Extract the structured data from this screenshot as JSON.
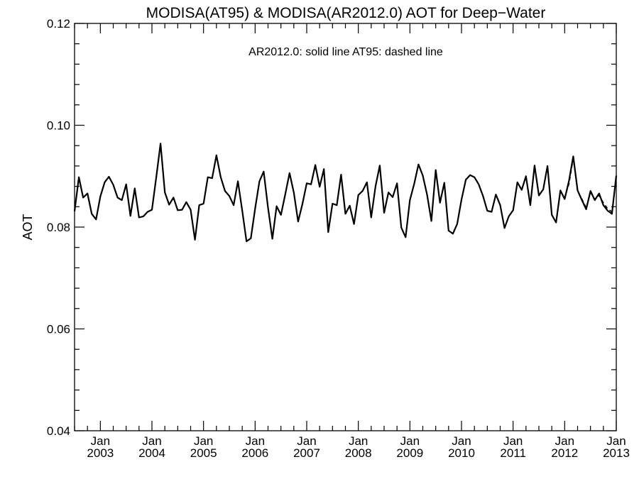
{
  "chart_data": {
    "type": "line",
    "title": "MODISA(AT95) & MODISA(AR2012.0)  AOT for Deep−Water",
    "annotation": "AR2012.0: solid line   AT95: dashed line",
    "xlabel": "",
    "ylabel": "AOT",
    "xlim": [
      "2002-07",
      "2013-01"
    ],
    "ylim": [
      0.04,
      0.12
    ],
    "grid": false,
    "y_ticks": [
      "0.04",
      "0.06",
      "0.08",
      "0.10",
      "0.12"
    ],
    "x_ticks": [
      {
        "month": "Jan",
        "year": "2003",
        "date": "2003-01"
      },
      {
        "month": "Jan",
        "year": "2004",
        "date": "2004-01"
      },
      {
        "month": "Jan",
        "year": "2005",
        "date": "2005-01"
      },
      {
        "month": "Jan",
        "year": "2006",
        "date": "2006-01"
      },
      {
        "month": "Jan",
        "year": "2007",
        "date": "2007-01"
      },
      {
        "month": "Jan",
        "year": "2008",
        "date": "2008-01"
      },
      {
        "month": "Jan",
        "year": "2009",
        "date": "2009-01"
      },
      {
        "month": "Jan",
        "year": "2010",
        "date": "2010-01"
      },
      {
        "month": "Jan",
        "year": "2011",
        "date": "2011-01"
      },
      {
        "month": "Jan",
        "year": "2012",
        "date": "2012-01"
      },
      {
        "month": "Jan",
        "year": "2013",
        "date": "2013-01"
      }
    ],
    "series": [
      {
        "style": "solid",
        "color": "#000000",
        "points": [
          [
            "2002-07",
            0.0831
          ],
          [
            "2002-08",
            0.0898
          ],
          [
            "2002-09",
            0.0858
          ],
          [
            "2002-10",
            0.0866
          ],
          [
            "2002-11",
            0.0826
          ],
          [
            "2002-12",
            0.0815
          ],
          [
            "2003-01",
            0.086
          ],
          [
            "2003-02",
            0.0888
          ],
          [
            "2003-03",
            0.0899
          ],
          [
            "2003-04",
            0.0883
          ],
          [
            "2003-05",
            0.0858
          ],
          [
            "2003-06",
            0.0853
          ],
          [
            "2003-07",
            0.0884
          ],
          [
            "2003-08",
            0.0822
          ],
          [
            "2003-09",
            0.0876
          ],
          [
            "2003-10",
            0.0819
          ],
          [
            "2003-11",
            0.0821
          ],
          [
            "2003-12",
            0.083
          ],
          [
            "2004-01",
            0.0834
          ],
          [
            "2004-02",
            0.0898
          ],
          [
            "2004-03",
            0.0964
          ],
          [
            "2004-04",
            0.0868
          ],
          [
            "2004-05",
            0.0844
          ],
          [
            "2004-06",
            0.0858
          ],
          [
            "2004-07",
            0.0833
          ],
          [
            "2004-08",
            0.0834
          ],
          [
            "2004-09",
            0.0849
          ],
          [
            "2004-10",
            0.0834
          ],
          [
            "2004-11",
            0.0775
          ],
          [
            "2004-12",
            0.0843
          ],
          [
            "2005-01",
            0.0846
          ],
          [
            "2005-02",
            0.0898
          ],
          [
            "2005-03",
            0.0896
          ],
          [
            "2005-04",
            0.0941
          ],
          [
            "2005-05",
            0.0898
          ],
          [
            "2005-06",
            0.0871
          ],
          [
            "2005-07",
            0.0861
          ],
          [
            "2005-08",
            0.0843
          ],
          [
            "2005-09",
            0.089
          ],
          [
            "2005-10",
            0.0832
          ],
          [
            "2005-11",
            0.0772
          ],
          [
            "2005-12",
            0.0778
          ],
          [
            "2006-01",
            0.0836
          ],
          [
            "2006-02",
            0.089
          ],
          [
            "2006-03",
            0.0909
          ],
          [
            "2006-04",
            0.0838
          ],
          [
            "2006-05",
            0.0777
          ],
          [
            "2006-06",
            0.0841
          ],
          [
            "2006-07",
            0.0824
          ],
          [
            "2006-08",
            0.0864
          ],
          [
            "2006-09",
            0.0906
          ],
          [
            "2006-10",
            0.0868
          ],
          [
            "2006-11",
            0.0811
          ],
          [
            "2006-12",
            0.0845
          ],
          [
            "2007-01",
            0.0886
          ],
          [
            "2007-02",
            0.0884
          ],
          [
            "2007-03",
            0.0922
          ],
          [
            "2007-04",
            0.0879
          ],
          [
            "2007-05",
            0.0914
          ],
          [
            "2007-06",
            0.079
          ],
          [
            "2007-07",
            0.0846
          ],
          [
            "2007-08",
            0.0843
          ],
          [
            "2007-09",
            0.0903
          ],
          [
            "2007-10",
            0.0826
          ],
          [
            "2007-11",
            0.0842
          ],
          [
            "2007-12",
            0.0806
          ],
          [
            "2008-01",
            0.0863
          ],
          [
            "2008-02",
            0.0871
          ],
          [
            "2008-03",
            0.0888
          ],
          [
            "2008-04",
            0.0819
          ],
          [
            "2008-05",
            0.088
          ],
          [
            "2008-06",
            0.0921
          ],
          [
            "2008-07",
            0.0828
          ],
          [
            "2008-08",
            0.0868
          ],
          [
            "2008-09",
            0.0859
          ],
          [
            "2008-10",
            0.0886
          ],
          [
            "2008-11",
            0.0799
          ],
          [
            "2008-12",
            0.078
          ],
          [
            "2009-01",
            0.0853
          ],
          [
            "2009-02",
            0.0885
          ],
          [
            "2009-03",
            0.0923
          ],
          [
            "2009-04",
            0.0901
          ],
          [
            "2009-05",
            0.0863
          ],
          [
            "2009-06",
            0.0812
          ],
          [
            "2009-07",
            0.0912
          ],
          [
            "2009-08",
            0.0848
          ],
          [
            "2009-09",
            0.0887
          ],
          [
            "2009-10",
            0.0793
          ],
          [
            "2009-11",
            0.0787
          ],
          [
            "2009-12",
            0.0806
          ],
          [
            "2010-01",
            0.0854
          ],
          [
            "2010-02",
            0.0893
          ],
          [
            "2010-03",
            0.0902
          ],
          [
            "2010-04",
            0.0898
          ],
          [
            "2010-05",
            0.0884
          ],
          [
            "2010-06",
            0.0861
          ],
          [
            "2010-07",
            0.0832
          ],
          [
            "2010-08",
            0.083
          ],
          [
            "2010-09",
            0.0864
          ],
          [
            "2010-10",
            0.0843
          ],
          [
            "2010-11",
            0.0798
          ],
          [
            "2010-12",
            0.0821
          ],
          [
            "2011-01",
            0.0833
          ],
          [
            "2011-02",
            0.0888
          ],
          [
            "2011-03",
            0.0873
          ],
          [
            "2011-04",
            0.09
          ],
          [
            "2011-05",
            0.0843
          ],
          [
            "2011-06",
            0.0921
          ],
          [
            "2011-07",
            0.0862
          ],
          [
            "2011-08",
            0.0874
          ],
          [
            "2011-09",
            0.092
          ],
          [
            "2011-10",
            0.0824
          ],
          [
            "2011-11",
            0.0809
          ],
          [
            "2011-12",
            0.0872
          ],
          [
            "2012-01",
            0.0855
          ],
          [
            "2012-02",
            0.0891
          ],
          [
            "2012-03",
            0.0939
          ],
          [
            "2012-04",
            0.0872
          ],
          [
            "2012-05",
            0.0853
          ],
          [
            "2012-06",
            0.0835
          ],
          [
            "2012-07",
            0.0871
          ],
          [
            "2012-08",
            0.0853
          ],
          [
            "2012-09",
            0.0866
          ],
          [
            "2012-10",
            0.0843
          ],
          [
            "2012-11",
            0.0832
          ],
          [
            "2012-12",
            0.0826
          ],
          [
            "2013-01",
            0.0901
          ]
        ]
      },
      {
        "style": "dashed",
        "color": "#000000",
        "points": [
          [
            "2011-12",
            0.087
          ],
          [
            "2012-01",
            0.0858
          ],
          [
            "2012-02",
            0.0885
          ],
          [
            "2012-03",
            0.0935
          ],
          [
            "2012-04",
            0.087
          ],
          [
            "2012-05",
            0.0855
          ],
          [
            "2012-06",
            0.0838
          ],
          [
            "2012-07",
            0.0868
          ],
          [
            "2012-08",
            0.0855
          ],
          [
            "2012-09",
            0.0862
          ],
          [
            "2012-10",
            0.0848
          ],
          [
            "2012-11",
            0.0836
          ],
          [
            "2012-12",
            0.083
          ],
          [
            "2013-01",
            0.0898
          ]
        ]
      }
    ]
  }
}
